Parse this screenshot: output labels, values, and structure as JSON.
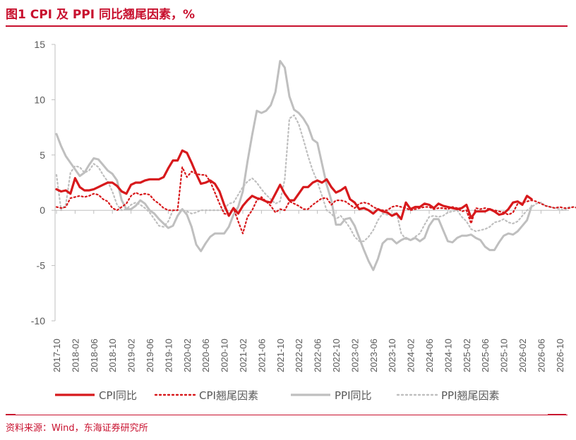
{
  "header": {
    "title": "图1  CPI 及 PPI 同比翘尾因素，%"
  },
  "footer": {
    "source": "资料来源：Wind，东海证券研究所"
  },
  "colors": {
    "brand": "#c8102e",
    "cpi": "#d7191c",
    "ppi": "#bfbfbf"
  },
  "chart_data": {
    "type": "line",
    "ylim": [
      -10,
      15
    ],
    "yticks": [
      "15",
      "10",
      "5",
      "0",
      "-5",
      "-10"
    ],
    "xticks": [
      "2017-10",
      "2018-02",
      "2018-06",
      "2018-10",
      "2019-02",
      "2019-06",
      "2019-10",
      "2020-02",
      "2020-06",
      "2020-10",
      "2021-02",
      "2021-06",
      "2021-10",
      "2022-02",
      "2022-06",
      "2022-10",
      "2023-02",
      "2023-06",
      "2023-10",
      "2024-02",
      "2024-06",
      "2024-10",
      "2025-02",
      "2025-06",
      "2025-10",
      "2026-02",
      "2026-06",
      "2026-10"
    ],
    "series": [
      {
        "name": "CPI同比",
        "style": "solid",
        "color": "#d7191c",
        "start": "2017-10",
        "values": [
          1.9,
          1.7,
          1.8,
          1.5,
          2.9,
          2.1,
          1.8,
          1.8,
          1.9,
          2.1,
          2.3,
          2.5,
          2.5,
          2.2,
          1.7,
          1.5,
          2.3,
          2.5,
          2.5,
          2.7,
          2.8,
          2.8,
          2.8,
          3.0,
          3.8,
          4.5,
          4.5,
          5.4,
          5.2,
          4.3,
          3.3,
          2.4,
          2.5,
          2.7,
          2.4,
          1.7,
          0.5,
          -0.5,
          0.2,
          -0.3,
          0.4,
          0.9,
          1.3,
          1.1,
          1.0,
          0.8,
          0.7,
          1.5,
          2.3,
          1.5,
          0.9,
          0.9,
          1.5,
          2.1,
          2.1,
          2.5,
          2.7,
          2.5,
          2.8,
          2.1,
          1.6,
          1.8,
          2.1,
          1.0,
          0.7,
          0.1,
          0.2,
          0.0,
          -0.3,
          0.1,
          -0.1,
          -0.2,
          -0.5,
          -0.3,
          -0.8,
          0.7,
          0.1,
          0.3,
          0.3,
          0.6,
          0.5,
          0.2,
          0.6,
          0.4,
          0.3,
          0.2,
          0.1,
          0.2,
          0.5,
          -0.7,
          -0.1,
          -0.1,
          -0.1,
          0.1,
          -0.1,
          -0.4,
          -0.3,
          0.1,
          0.7,
          0.8,
          0.5,
          1.3,
          1.0
        ]
      },
      {
        "name": "CPI翘尾因素",
        "style": "dotted",
        "color": "#d7191c",
        "start": "2017-10",
        "values": [
          0.3,
          0.2,
          0.3,
          1.1,
          1.2,
          1.3,
          1.2,
          1.3,
          1.5,
          1.4,
          1.0,
          0.8,
          0.2,
          0.0,
          0.3,
          0.6,
          1.3,
          1.6,
          1.4,
          1.5,
          1.4,
          0.9,
          0.6,
          0.2,
          0.0,
          0.0,
          0.0,
          3.9,
          3.0,
          3.5,
          3.3,
          3.2,
          3.2,
          2.6,
          1.6,
          0.6,
          -0.3,
          -0.4,
          0.2,
          -1.0,
          -2.1,
          -0.6,
          0.0,
          0.9,
          1.2,
          0.8,
          0.4,
          -0.2,
          0.1,
          0.0,
          0.8,
          0.6,
          0.4,
          0.1,
          0.1,
          0.5,
          0.8,
          1.1,
          1.1,
          0.5,
          0.9,
          0.9,
          0.8,
          0.5,
          0.2,
          0.6,
          0.7,
          0.6,
          0.3,
          0.1,
          0.0,
          0.0,
          0.3,
          0.4,
          0.3,
          0.2,
          0.0,
          0.1,
          0.2,
          0.3,
          0.3,
          0.1,
          0.2,
          0.2,
          0.1,
          0.3,
          0.2,
          -0.1,
          0.0,
          -1.2,
          0.2,
          0.1,
          0.2,
          0.1,
          0.0,
          -0.1,
          -0.2,
          -0.4,
          -0.2,
          0.6,
          0.7,
          0.8,
          0.9,
          0.8,
          0.6,
          0.4,
          0.3,
          0.2,
          0.3,
          0.2,
          0.2,
          0.3,
          0.2,
          0.1,
          0.0
        ]
      },
      {
        "name": "PPI同比",
        "style": "solid",
        "color": "#bfbfbf",
        "start": "2017-10",
        "values": [
          6.9,
          5.8,
          4.9,
          4.3,
          3.7,
          3.1,
          3.4,
          4.1,
          4.7,
          4.6,
          4.1,
          3.6,
          3.3,
          2.7,
          0.9,
          0.1,
          0.1,
          0.4,
          0.9,
          0.6,
          0.0,
          -0.3,
          -0.8,
          -1.2,
          -1.6,
          -1.4,
          -0.5,
          0.1,
          -0.4,
          -1.5,
          -3.1,
          -3.7,
          -3.0,
          -2.4,
          -2.1,
          -2.1,
          -2.1,
          -1.5,
          -0.4,
          0.3,
          1.7,
          4.4,
          6.8,
          9.0,
          8.8,
          9.0,
          9.5,
          10.7,
          13.5,
          12.9,
          10.3,
          9.1,
          8.8,
          8.3,
          7.6,
          6.4,
          6.1,
          4.2,
          2.3,
          0.9,
          -1.3,
          -1.3,
          -0.8,
          -0.7,
          -1.4,
          -2.5,
          -3.6,
          -4.6,
          -5.4,
          -4.4,
          -3.0,
          -2.6,
          -2.6,
          -3.0,
          -2.7,
          -2.5,
          -2.7,
          -2.5,
          -2.8,
          -2.5,
          -1.4,
          -0.8,
          -0.8,
          -1.8,
          -2.8,
          -2.9,
          -2.5,
          -2.3,
          -2.3,
          -2.2,
          -2.5,
          -2.7,
          -3.3,
          -3.6,
          -3.6,
          -2.9,
          -2.3,
          -2.1,
          -2.2,
          -1.9,
          -1.4,
          -0.9,
          0.4
        ]
      },
      {
        "name": "PPI翘尾因素",
        "style": "dotted",
        "color": "#bfbfbf",
        "start": "2017-10",
        "values": [
          3.2,
          0.0,
          0.5,
          3.4,
          4.0,
          3.9,
          3.4,
          3.6,
          4.2,
          3.9,
          3.2,
          2.6,
          1.7,
          0.5,
          0.0,
          0.1,
          0.5,
          0.7,
          0.5,
          0.2,
          -0.2,
          -0.8,
          -1.4,
          -1.5,
          -1.0,
          0.0,
          0.0,
          0.0,
          -0.1,
          -0.3,
          -0.2,
          0.0,
          0.0,
          0.0,
          0.0,
          0.0,
          0.1,
          0.6,
          0.7,
          1.4,
          2.1,
          2.6,
          2.9,
          2.5,
          1.9,
          1.4,
          1.0,
          0.6,
          0.8,
          2.8,
          8.3,
          8.6,
          7.8,
          6.4,
          4.9,
          3.6,
          2.6,
          1.3,
          0.0,
          -0.3,
          -0.8,
          -0.5,
          -1.0,
          -1.6,
          -2.4,
          -2.8,
          -2.8,
          -2.4,
          -1.8,
          -0.9,
          -0.3,
          -0.4,
          -0.4,
          -0.2,
          -2.1,
          -2.6,
          -2.7,
          -2.4,
          -2.1,
          -1.3,
          -0.6,
          -0.5,
          -0.6,
          -0.5,
          -0.2,
          -0.1,
          0.0,
          -0.6,
          -1.0,
          -1.7,
          -1.9,
          -1.8,
          -1.7,
          -1.5,
          -1.1,
          -1.0,
          -0.8,
          -1.1,
          -1.2,
          -1.0,
          -0.5,
          0.0,
          0.3,
          0.6,
          0.7,
          0.4,
          0.3,
          0.2,
          0.1,
          0.0,
          0.3,
          0.3,
          0.2,
          0.1,
          0.0
        ]
      }
    ]
  }
}
